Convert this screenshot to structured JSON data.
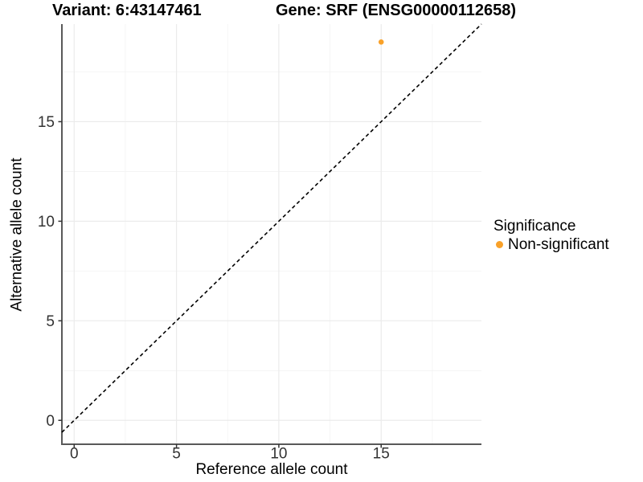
{
  "titles": {
    "variant": "Variant: 6:43147461",
    "gene": "Gene: SRF (ENSG00000112658)"
  },
  "legend": {
    "title": "Significance",
    "items": [
      {
        "label": "Non-significant",
        "color": "#F9A129"
      }
    ]
  },
  "chart_data": {
    "type": "scatter",
    "title": "Variant: 6:43147461 — Gene: SRF (ENSG00000112658)",
    "xlabel": "Reference allele count",
    "ylabel": "Alternative allele count",
    "xlim": [
      -0.6,
      19.9
    ],
    "ylim": [
      -1.2,
      19.9
    ],
    "x_ticks": [
      0,
      5,
      10,
      15
    ],
    "y_ticks": [
      0,
      5,
      10,
      15
    ],
    "x_minor_ticks": [
      2.5,
      7.5,
      12.5,
      17.5
    ],
    "y_minor_ticks": [
      2.5,
      7.5,
      12.5,
      17.5
    ],
    "grid": true,
    "legend_position": "right",
    "series": [
      {
        "name": "Non-significant",
        "color": "#F9A129",
        "points": [
          {
            "x": 15,
            "y": 19
          }
        ]
      }
    ],
    "reference_line": {
      "type": "identity",
      "equation": "y = x",
      "style": "dashed",
      "color": "#000000"
    },
    "colors": {
      "background": "#FFFFFF",
      "axis_line": "#595959",
      "grid_major": "#EBEBEB",
      "grid_minor": "#F3F3F3",
      "tick_mark": "#333333",
      "tick_label": "#333333",
      "point": "#F9A129"
    }
  }
}
